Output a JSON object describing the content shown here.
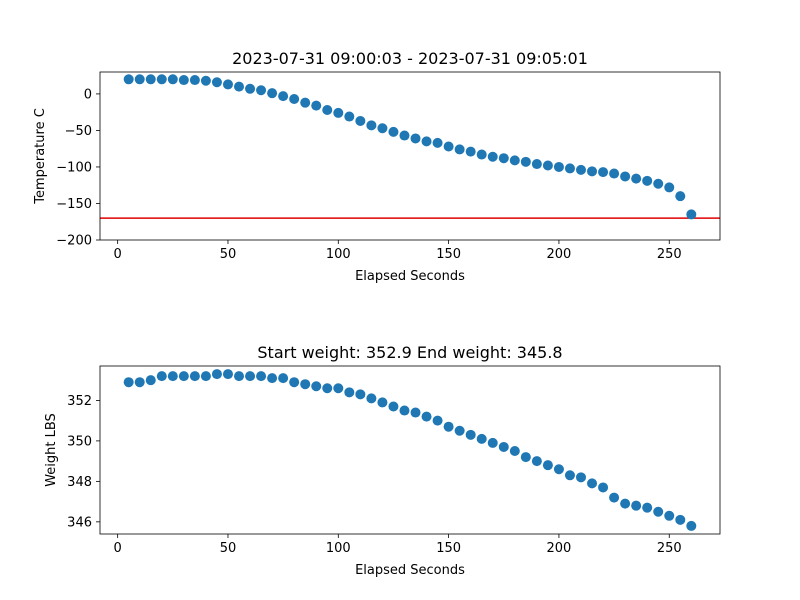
{
  "chart_data": [
    {
      "type": "scatter",
      "title": "2023-07-31 09:00:03 - 2023-07-31 09:05:01",
      "xlabel": "Elapsed Seconds",
      "ylabel": "Temperature C",
      "xlim": [
        -8,
        273
      ],
      "ylim": [
        -200,
        30
      ],
      "xticks": [
        0,
        50,
        100,
        150,
        200,
        250
      ],
      "yticks": [
        0,
        -50,
        -100,
        -150,
        -200
      ],
      "ytick_labels": [
        "0",
        "−50",
        "−100",
        "−150",
        "−200"
      ],
      "grid": false,
      "marker_color": "#1f77b4",
      "hline": {
        "y": -170,
        "color": "#e00000"
      },
      "x": [
        5,
        10,
        15,
        20,
        25,
        30,
        35,
        40,
        45,
        50,
        55,
        60,
        65,
        70,
        75,
        80,
        85,
        90,
        95,
        100,
        105,
        110,
        115,
        120,
        125,
        130,
        135,
        140,
        145,
        150,
        155,
        160,
        165,
        170,
        175,
        180,
        185,
        190,
        195,
        200,
        205,
        210,
        215,
        220,
        225,
        230,
        235,
        240,
        245,
        250,
        255,
        260
      ],
      "y": [
        20,
        20,
        20,
        20,
        20,
        19,
        19,
        18,
        16,
        13,
        10,
        7,
        5,
        1,
        -3,
        -7,
        -12,
        -16,
        -22,
        -26,
        -31,
        -37,
        -43,
        -47,
        -52,
        -57,
        -61,
        -65,
        -67,
        -72,
        -76,
        -79,
        -83,
        -86,
        -88,
        -91,
        -93,
        -96,
        -98,
        -100,
        -102,
        -104,
        -106,
        -107,
        -109,
        -113,
        -116,
        -119,
        -123,
        -128,
        -140,
        -165
      ]
    },
    {
      "type": "scatter",
      "title": "Start weight: 352.9 End weight: 345.8",
      "xlabel": "Elapsed Seconds",
      "ylabel": "Weight LBS",
      "xlim": [
        -8,
        273
      ],
      "ylim": [
        345.4,
        353.7
      ],
      "xticks": [
        0,
        50,
        100,
        150,
        200,
        250
      ],
      "yticks": [
        346,
        348,
        350,
        352
      ],
      "ytick_labels": [
        "346",
        "348",
        "350",
        "352"
      ],
      "grid": false,
      "marker_color": "#1f77b4",
      "x": [
        5,
        10,
        15,
        20,
        25,
        30,
        35,
        40,
        45,
        50,
        55,
        60,
        65,
        70,
        75,
        80,
        85,
        90,
        95,
        100,
        105,
        110,
        115,
        120,
        125,
        130,
        135,
        140,
        145,
        150,
        155,
        160,
        165,
        170,
        175,
        180,
        185,
        190,
        195,
        200,
        205,
        210,
        215,
        220,
        225,
        230,
        235,
        240,
        245,
        250,
        255,
        260
      ],
      "y": [
        352.9,
        352.9,
        353.0,
        353.2,
        353.2,
        353.2,
        353.2,
        353.2,
        353.3,
        353.3,
        353.2,
        353.2,
        353.2,
        353.1,
        353.1,
        352.9,
        352.8,
        352.7,
        352.6,
        352.6,
        352.4,
        352.3,
        352.1,
        351.9,
        351.7,
        351.5,
        351.4,
        351.2,
        351.0,
        350.7,
        350.5,
        350.3,
        350.1,
        349.9,
        349.7,
        349.5,
        349.2,
        349.0,
        348.8,
        348.6,
        348.3,
        348.2,
        347.9,
        347.7,
        347.2,
        346.9,
        346.8,
        346.7,
        346.5,
        346.3,
        346.1,
        345.8
      ]
    }
  ]
}
